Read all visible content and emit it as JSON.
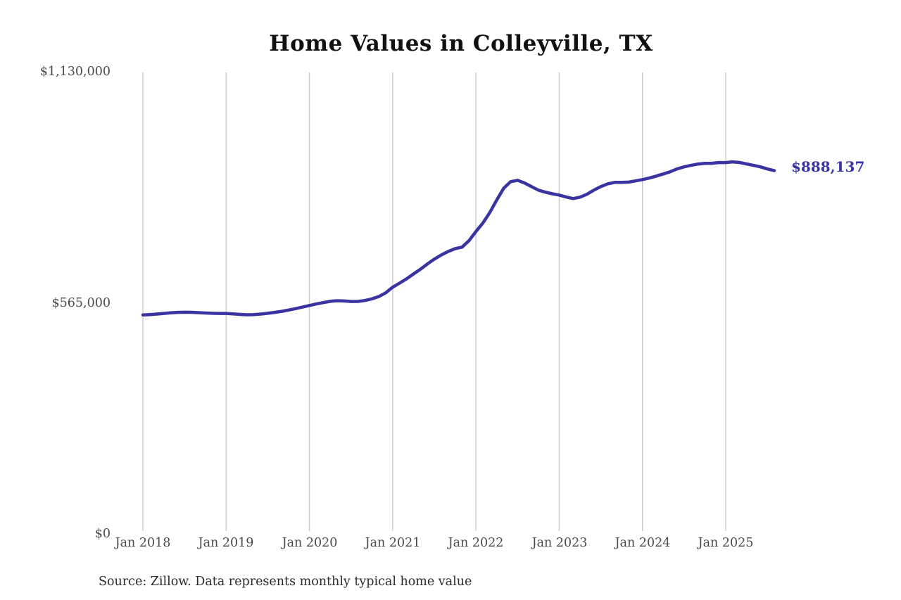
{
  "title": "Home Values in Colleyville, TX",
  "end_label": "$888,137",
  "source_note": "Source: Zillow. Data represents monthly typical home value",
  "colors": {
    "line": "#3a34a3",
    "end_label_text": "#3a34a3",
    "grid": "#c8c8c8",
    "title_text": "#111111",
    "axis_text": "#4a4a4a",
    "source_text": "#2b2b2b",
    "background": "#ffffff"
  },
  "y_axis": {
    "tick_labels": [
      "$1,130,000",
      "$565,000",
      "$0"
    ],
    "tick_values": [
      1130000,
      565000,
      0
    ]
  },
  "x_axis": {
    "tick_labels": [
      "Jan 2018",
      "Jan 2019",
      "Jan 2020",
      "Jan 2021",
      "Jan 2022",
      "Jan 2023",
      "Jan 2024",
      "Jan 2025"
    ]
  },
  "chart_data": {
    "type": "line",
    "title": "Home Values in Colleyville, TX",
    "ylabel": "",
    "xlabel": "",
    "ylim": [
      0,
      1130000
    ],
    "grid": "vertical-only",
    "legend": "none",
    "last_point_label": "$888,137",
    "x_tick_labels": [
      "Jan 2018",
      "Jan 2019",
      "Jan 2020",
      "Jan 2021",
      "Jan 2022",
      "Jan 2023",
      "Jan 2024",
      "Jan 2025"
    ],
    "y_tick_labels": [
      "$0",
      "$565,000",
      "$1,130,000"
    ],
    "x": [
      "2018-01",
      "2018-02",
      "2018-03",
      "2018-04",
      "2018-05",
      "2018-06",
      "2018-07",
      "2018-08",
      "2018-09",
      "2018-10",
      "2018-11",
      "2018-12",
      "2019-01",
      "2019-02",
      "2019-03",
      "2019-04",
      "2019-05",
      "2019-06",
      "2019-07",
      "2019-08",
      "2019-09",
      "2019-10",
      "2019-11",
      "2019-12",
      "2020-01",
      "2020-02",
      "2020-03",
      "2020-04",
      "2020-05",
      "2020-06",
      "2020-07",
      "2020-08",
      "2020-09",
      "2020-10",
      "2020-11",
      "2020-12",
      "2021-01",
      "2021-02",
      "2021-03",
      "2021-04",
      "2021-05",
      "2021-06",
      "2021-07",
      "2021-08",
      "2021-09",
      "2021-10",
      "2021-11",
      "2021-12",
      "2022-01",
      "2022-02",
      "2022-03",
      "2022-04",
      "2022-05",
      "2022-06",
      "2022-07",
      "2022-08",
      "2022-09",
      "2022-10",
      "2022-11",
      "2022-12",
      "2023-01",
      "2023-02",
      "2023-03",
      "2023-04",
      "2023-05",
      "2023-06",
      "2023-07",
      "2023-08",
      "2023-09",
      "2023-10",
      "2023-11",
      "2023-12",
      "2024-01",
      "2024-02",
      "2024-03",
      "2024-04",
      "2024-05",
      "2024-06",
      "2024-07",
      "2024-08",
      "2024-09",
      "2024-10",
      "2024-11",
      "2024-12",
      "2025-01",
      "2025-02",
      "2025-03",
      "2025-04",
      "2025-05",
      "2025-06",
      "2025-07",
      "2025-08"
    ],
    "series": [
      {
        "name": "Monthly typical home value",
        "values": [
          535500,
          536200,
          537400,
          539000,
          540500,
          541600,
          542000,
          541700,
          541000,
          540100,
          539300,
          539000,
          539000,
          537900,
          536600,
          535800,
          536100,
          537400,
          539400,
          541600,
          544200,
          547200,
          550700,
          554500,
          558500,
          562200,
          565600,
          568600,
          570100,
          569400,
          568300,
          568500,
          570600,
          574600,
          580300,
          589500,
          603100,
          613200,
          623600,
          635600,
          647100,
          659900,
          671800,
          681900,
          690600,
          697500,
          701200,
          717100,
          739200,
          760100,
          785600,
          816400,
          845200,
          861100,
          864600,
          858100,
          849100,
          840600,
          835500,
          831600,
          828500,
          823600,
          819900,
          823400,
          830400,
          840500,
          849100,
          856000,
          859500,
          859600,
          860100,
          863100,
          866400,
          870100,
          875000,
          880100,
          885500,
          892400,
          897500,
          901000,
          904400,
          906100,
          906200,
          907900,
          908000,
          909600,
          908100,
          904500,
          901000,
          897400,
          892300,
          888137
        ]
      }
    ]
  }
}
